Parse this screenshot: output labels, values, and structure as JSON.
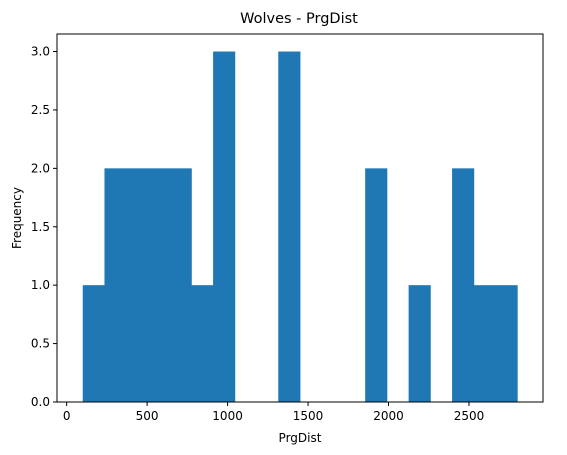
{
  "chart_data": {
    "type": "bar",
    "title": "Wolves - PrgDist",
    "xlabel": "PrgDist",
    "ylabel": "Frequency",
    "xlim": [
      -60,
      2960
    ],
    "ylim": [
      0,
      3.15
    ],
    "xticks": [
      0,
      500,
      1000,
      1500,
      2000,
      2500
    ],
    "yticks": [
      0.0,
      0.5,
      1.0,
      1.5,
      2.0,
      2.5,
      3.0
    ],
    "ytick_labels": [
      "0.0",
      "0.5",
      "1.0",
      "1.5",
      "2.0",
      "2.5",
      "3.0"
    ],
    "bins": [
      {
        "x0": 100,
        "x1": 235,
        "count": 1
      },
      {
        "x0": 235,
        "x1": 370,
        "count": 2
      },
      {
        "x0": 370,
        "x1": 505,
        "count": 2
      },
      {
        "x0": 505,
        "x1": 640,
        "count": 2
      },
      {
        "x0": 640,
        "x1": 775,
        "count": 2
      },
      {
        "x0": 775,
        "x1": 910,
        "count": 1
      },
      {
        "x0": 910,
        "x1": 1045,
        "count": 3
      },
      {
        "x0": 1045,
        "x1": 1180,
        "count": 0
      },
      {
        "x0": 1180,
        "x1": 1315,
        "count": 0
      },
      {
        "x0": 1315,
        "x1": 1450,
        "count": 3
      },
      {
        "x0": 1450,
        "x1": 1585,
        "count": 0
      },
      {
        "x0": 1585,
        "x1": 1720,
        "count": 0
      },
      {
        "x0": 1720,
        "x1": 1855,
        "count": 0
      },
      {
        "x0": 1855,
        "x1": 1990,
        "count": 2
      },
      {
        "x0": 1990,
        "x1": 2125,
        "count": 0
      },
      {
        "x0": 2125,
        "x1": 2260,
        "count": 1
      },
      {
        "x0": 2260,
        "x1": 2395,
        "count": 0
      },
      {
        "x0": 2395,
        "x1": 2530,
        "count": 2
      },
      {
        "x0": 2530,
        "x1": 2665,
        "count": 1
      },
      {
        "x0": 2665,
        "x1": 2800,
        "count": 1
      }
    ],
    "bar_color": "#1f77b4",
    "grid": false,
    "legend": "none"
  }
}
